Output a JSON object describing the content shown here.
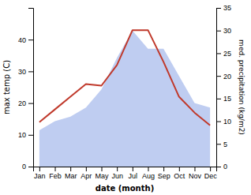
{
  "chart_data": {
    "type": "line",
    "categories": [
      "Jan",
      "Feb",
      "Mar",
      "Apr",
      "May",
      "Jun",
      "Jul",
      "Aug",
      "Sep",
      "Oct",
      "Nov",
      "Dec"
    ],
    "xlabel": "date (month)",
    "ylabel": "max temp (C)",
    "y2label": "med. precipitation (kg/m2)",
    "series": [
      {
        "type": "area",
        "axis": "y2",
        "color": "#b8c8f0",
        "values": [
          8,
          10,
          11,
          13,
          17,
          24,
          30,
          26,
          26,
          20,
          14,
          13
        ]
      },
      {
        "type": "line",
        "color": "#c0392b",
        "values": [
          14,
          18,
          22,
          26,
          25.5,
          32,
          43,
          43,
          33,
          22,
          17,
          13
        ]
      }
    ],
    "ylim": [
      0,
      50
    ],
    "yticks": [
      0,
      10,
      20,
      30,
      40
    ],
    "y2lim": [
      0,
      35
    ],
    "y2ticks": [
      0,
      5,
      10,
      15,
      20,
      25,
      30,
      35
    ]
  }
}
